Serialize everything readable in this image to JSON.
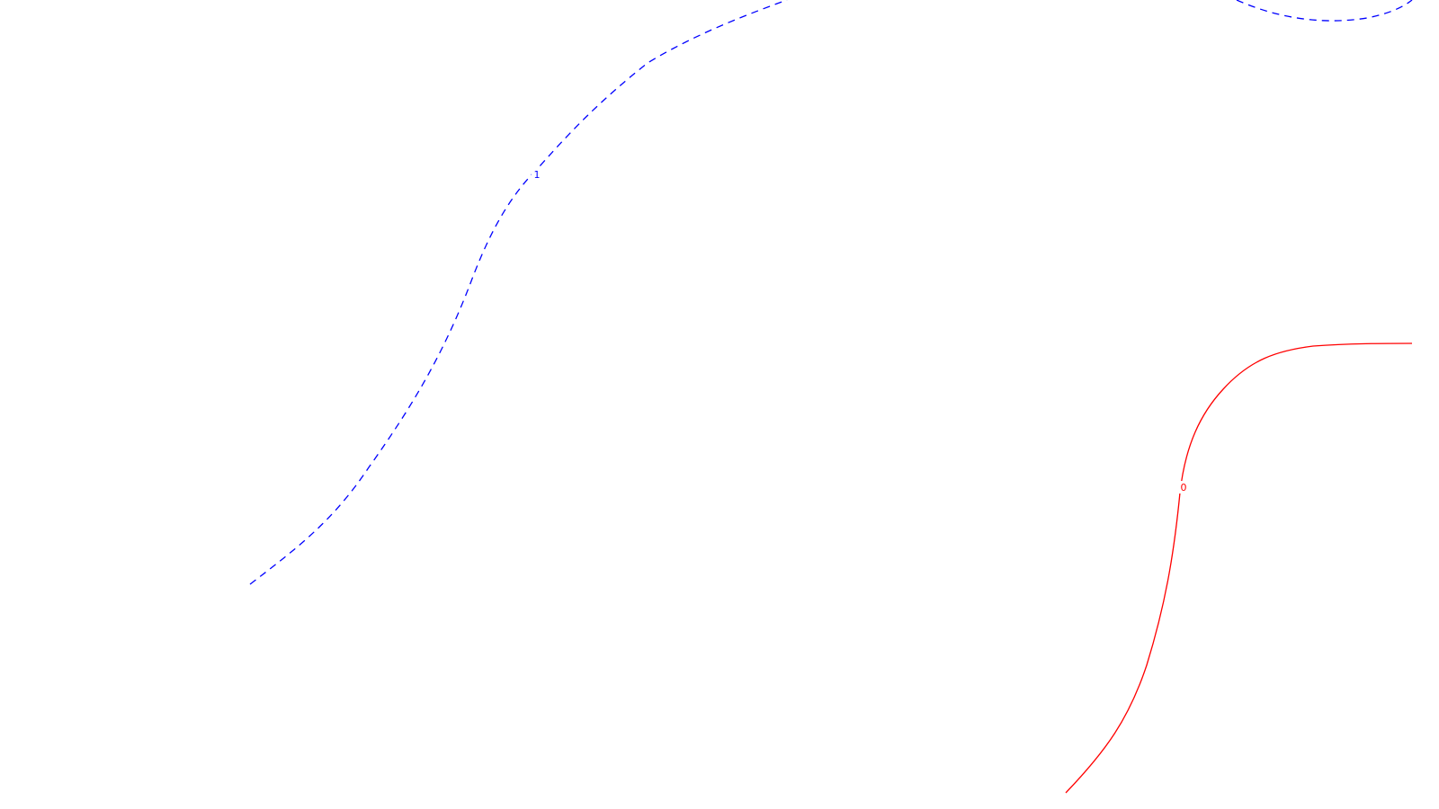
{
  "contours": [
    {
      "id": "dashed-contour",
      "label": "1",
      "color": "#0000ff",
      "style": "dashed"
    },
    {
      "id": "top-right-dashed-contour",
      "label": "",
      "color": "#0000ff",
      "style": "dashed"
    },
    {
      "id": "solid-contour",
      "label": "0",
      "color": "#ff0000",
      "style": "solid"
    }
  ]
}
